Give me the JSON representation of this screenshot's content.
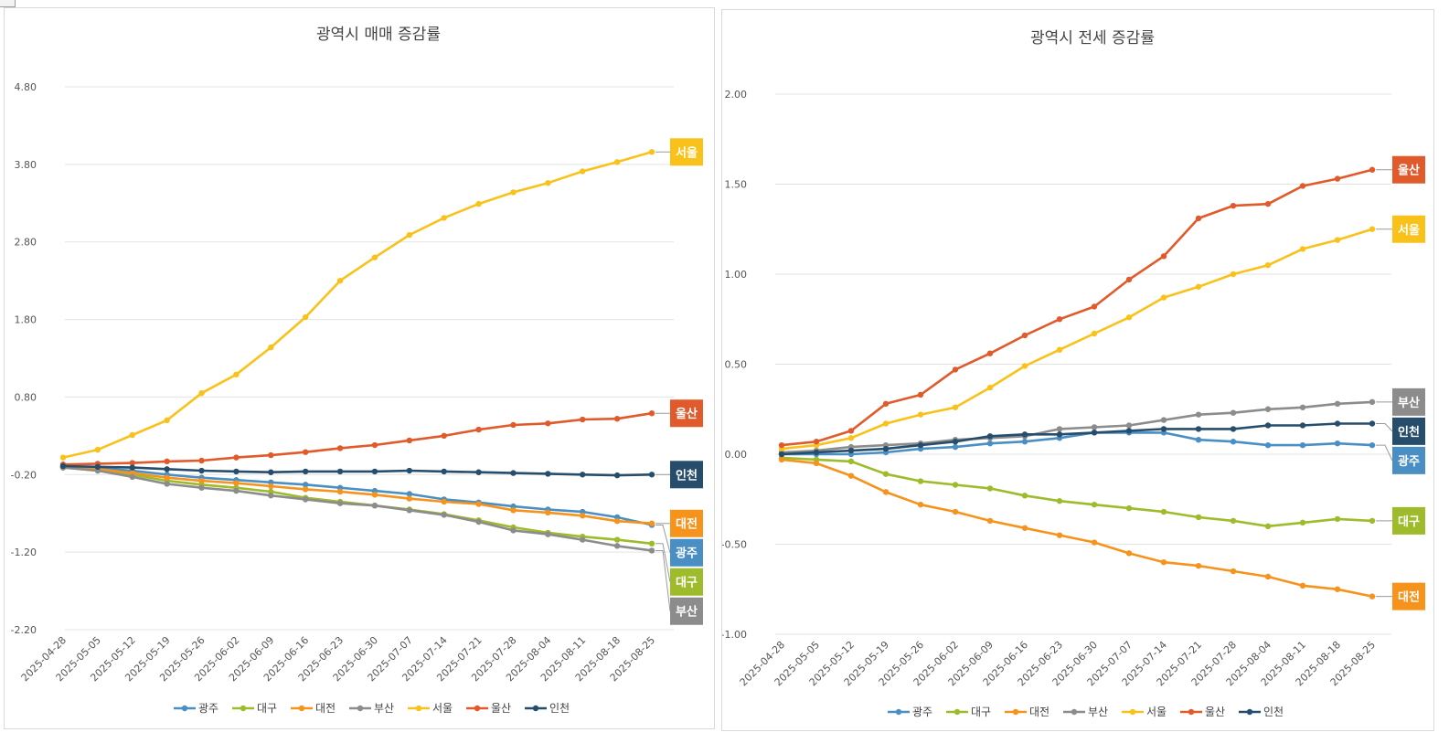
{
  "chart_data": [
    {
      "type": "line",
      "title": "광역시 매매 증감률",
      "xlabel": "",
      "ylabel": "",
      "ylim": [
        -2.2,
        4.8
      ],
      "yticks": [
        "4.80",
        "3.80",
        "2.80",
        "1.80",
        "0.80",
        "-0.20",
        "-1.20",
        "-2.20"
      ],
      "grid": true,
      "legend": "bottom",
      "categories": [
        "2025-04-28",
        "2025-05-05",
        "2025-05-12",
        "2025-05-19",
        "2025-05-26",
        "2025-06-02",
        "2025-06-09",
        "2025-06-16",
        "2025-06-23",
        "2025-06-30",
        "2025-07-07",
        "2025-07-14",
        "2025-07-21",
        "2025-07-28",
        "2025-08-04",
        "2025-08-11",
        "2025-08-18",
        "2025-08-25"
      ],
      "series": [
        {
          "name": "광주",
          "color": "#4A8FC4",
          "values": [
            -0.1,
            -0.12,
            -0.15,
            -0.2,
            -0.24,
            -0.27,
            -0.3,
            -0.33,
            -0.37,
            -0.41,
            -0.45,
            -0.52,
            -0.56,
            -0.61,
            -0.65,
            -0.68,
            -0.75,
            -0.85
          ]
        },
        {
          "name": "대구",
          "color": "#9DBB2A",
          "values": [
            -0.11,
            -0.15,
            -0.2,
            -0.28,
            -0.33,
            -0.37,
            -0.42,
            -0.5,
            -0.55,
            -0.6,
            -0.65,
            -0.71,
            -0.79,
            -0.88,
            -0.95,
            -1.0,
            -1.04,
            -1.09
          ]
        },
        {
          "name": "대전",
          "color": "#F5931C",
          "values": [
            -0.1,
            -0.13,
            -0.18,
            -0.24,
            -0.28,
            -0.31,
            -0.35,
            -0.39,
            -0.42,
            -0.46,
            -0.51,
            -0.55,
            -0.58,
            -0.66,
            -0.69,
            -0.73,
            -0.8,
            -0.83
          ]
        },
        {
          "name": "부산",
          "color": "#8C8C8C",
          "values": [
            -0.11,
            -0.15,
            -0.23,
            -0.32,
            -0.37,
            -0.41,
            -0.47,
            -0.52,
            -0.57,
            -0.6,
            -0.66,
            -0.72,
            -0.81,
            -0.92,
            -0.97,
            -1.04,
            -1.12,
            -1.18
          ]
        },
        {
          "name": "서울",
          "color": "#F9C21B",
          "values": [
            0.02,
            0.12,
            0.31,
            0.5,
            0.85,
            1.09,
            1.44,
            1.83,
            2.3,
            2.6,
            2.89,
            3.11,
            3.29,
            3.44,
            3.56,
            3.71,
            3.83,
            3.96
          ]
        },
        {
          "name": "울산",
          "color": "#E05A2B",
          "values": [
            -0.07,
            -0.06,
            -0.05,
            -0.03,
            -0.02,
            0.02,
            0.05,
            0.09,
            0.14,
            0.18,
            0.24,
            0.3,
            0.38,
            0.44,
            0.46,
            0.51,
            0.52,
            0.59
          ]
        },
        {
          "name": "인천",
          "color": "#264D6B",
          "values": [
            -0.09,
            -0.1,
            -0.11,
            -0.13,
            -0.15,
            -0.16,
            -0.17,
            -0.16,
            -0.16,
            -0.16,
            -0.15,
            -0.16,
            -0.17,
            -0.18,
            -0.19,
            -0.2,
            -0.21,
            -0.2
          ]
        }
      ]
    },
    {
      "type": "line",
      "title": "광역시 전세 증감률",
      "xlabel": "",
      "ylabel": "",
      "ylim": [
        -1.0,
        2.0
      ],
      "yticks": [
        "2.00",
        "1.50",
        "1.00",
        "0.50",
        "0.00",
        "-0.50",
        "-1.00"
      ],
      "grid": true,
      "legend": "bottom",
      "categories": [
        "2025-04-28",
        "2025-05-05",
        "2025-05-12",
        "2025-05-19",
        "2025-05-26",
        "2025-06-02",
        "2025-06-09",
        "2025-06-16",
        "2025-06-23",
        "2025-06-30",
        "2025-07-07",
        "2025-07-14",
        "2025-07-21",
        "2025-07-28",
        "2025-08-04",
        "2025-08-11",
        "2025-08-18",
        "2025-08-25"
      ],
      "series": [
        {
          "name": "광주",
          "color": "#4A8FC4",
          "values": [
            0.0,
            0.0,
            0.0,
            0.01,
            0.03,
            0.04,
            0.06,
            0.07,
            0.09,
            0.12,
            0.12,
            0.12,
            0.08,
            0.07,
            0.05,
            0.05,
            0.06,
            0.05
          ]
        },
        {
          "name": "대구",
          "color": "#9DBB2A",
          "values": [
            -0.02,
            -0.03,
            -0.04,
            -0.11,
            -0.15,
            -0.17,
            -0.19,
            -0.23,
            -0.26,
            -0.28,
            -0.3,
            -0.32,
            -0.35,
            -0.37,
            -0.4,
            -0.38,
            -0.36,
            -0.37
          ]
        },
        {
          "name": "대전",
          "color": "#F5931C",
          "values": [
            -0.03,
            -0.05,
            -0.12,
            -0.21,
            -0.28,
            -0.32,
            -0.37,
            -0.41,
            -0.45,
            -0.49,
            -0.55,
            -0.6,
            -0.62,
            -0.65,
            -0.68,
            -0.73,
            -0.75,
            -0.79
          ]
        },
        {
          "name": "부산",
          "color": "#8C8C8C",
          "values": [
            0.01,
            0.02,
            0.04,
            0.05,
            0.06,
            0.08,
            0.09,
            0.1,
            0.14,
            0.15,
            0.16,
            0.19,
            0.22,
            0.23,
            0.25,
            0.26,
            0.28,
            0.29
          ]
        },
        {
          "name": "서울",
          "color": "#F9C21B",
          "values": [
            0.03,
            0.05,
            0.09,
            0.17,
            0.22,
            0.26,
            0.37,
            0.49,
            0.58,
            0.67,
            0.76,
            0.87,
            0.93,
            1.0,
            1.05,
            1.14,
            1.19,
            1.25
          ]
        },
        {
          "name": "울산",
          "color": "#E05A2B",
          "values": [
            0.05,
            0.07,
            0.13,
            0.28,
            0.33,
            0.47,
            0.56,
            0.66,
            0.75,
            0.82,
            0.97,
            1.1,
            1.31,
            1.38,
            1.39,
            1.49,
            1.53,
            1.58
          ]
        },
        {
          "name": "인천",
          "color": "#264D6B",
          "values": [
            0.0,
            0.01,
            0.02,
            0.03,
            0.05,
            0.07,
            0.1,
            0.11,
            0.11,
            0.12,
            0.13,
            0.14,
            0.14,
            0.14,
            0.16,
            0.16,
            0.17,
            0.17
          ]
        }
      ]
    }
  ]
}
